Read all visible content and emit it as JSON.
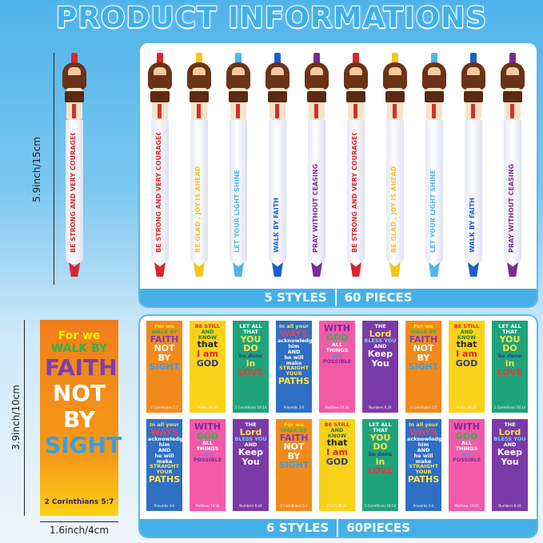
{
  "title": "PRODUCT INFORMATIONS",
  "pens_panel": {
    "styles": "5 STYLES",
    "pieces": "60 PIECES"
  },
  "bookmarks_panel": {
    "styles": "6 STYLES",
    "pieces": "60PIECES"
  },
  "dimensions": {
    "pen_length": "5.9inch/15cm",
    "bookmark_height": "3.9inch/10cm",
    "bookmark_width": "1.6inch/4cm"
  },
  "pen_styles": [
    {
      "text": "BE STRONG AND VERY COURAGEOUS",
      "color": "#d8262c"
    },
    {
      "text": "BE GLAD , JOY IS AHEAD",
      "color": "#f5c518"
    },
    {
      "text": "LET YOUR LIGHT SHINE",
      "color": "#4fb6ec"
    },
    {
      "text": "WALK BY FAITH",
      "color": "#1f5fc8"
    },
    {
      "text": "PRAY WITHOUT CEASING",
      "color": "#7a2a9a"
    }
  ],
  "pen_order": [
    0,
    1,
    2,
    3,
    4,
    0,
    1,
    2,
    3,
    4
  ],
  "bookmark_styles": [
    {
      "bg": "#f38a1c",
      "lines": [
        {
          "t": "For we",
          "c": "#fff200"
        },
        {
          "t": "WALK BY",
          "c": "#2eb34a"
        },
        {
          "t": "FAITH",
          "c": "#7b3fb0",
          "big": true
        },
        {
          "t": "NOT",
          "c": "#fff",
          "big": true
        },
        {
          "t": "BY",
          "c": "#fff",
          "big": true
        },
        {
          "t": "SIGHT",
          "c": "#3a9ee0",
          "big": true
        }
      ],
      "ref": "2 Corinthians 5:7"
    },
    {
      "bg": "#f9d21a",
      "lines": [
        {
          "t": "BE STILL",
          "c": "#e2262c"
        },
        {
          "t": "AND KNOW",
          "c": "#2a7a3a"
        },
        {
          "t": "that",
          "c": "#222",
          "big": true
        },
        {
          "t": "I am",
          "c": "#d8262c",
          "big": true
        },
        {
          "t": "GOD",
          "c": "#2a3a8a",
          "big": true
        }
      ],
      "ref": "Psalm 46:10"
    },
    {
      "bg": "#1fa37a",
      "lines": [
        {
          "t": "LET ALL",
          "c": "#fff"
        },
        {
          "t": "THAT",
          "c": "#fff"
        },
        {
          "t": "YOU DO",
          "c": "#ffe14a",
          "big": true
        },
        {
          "t": "be done",
          "c": "#2a3a8a"
        },
        {
          "t": "in",
          "c": "#ffe14a",
          "big": true
        },
        {
          "t": "LOVE",
          "c": "#e23a3a",
          "big": true
        }
      ],
      "ref": "1 Corinthians 16:14"
    },
    {
      "bg": "#2f6fc4",
      "lines": [
        {
          "t": "In all your",
          "c": "#ffe14a"
        },
        {
          "t": "WAYS",
          "c": "#e8405a",
          "big": true
        },
        {
          "t": "acknowledge him",
          "c": "#fff"
        },
        {
          "t": "AND",
          "c": "#fff"
        },
        {
          "t": "he will make",
          "c": "#fff"
        },
        {
          "t": "STRAIGHT YOUR",
          "c": "#ffe14a"
        },
        {
          "t": "PATHS",
          "c": "#ffe14a",
          "big": true
        }
      ],
      "ref": "Proverbs 3:6"
    },
    {
      "bg": "#f25aa8",
      "lines": [
        {
          "t": "WITH",
          "c": "#7a2a9a",
          "big": true
        },
        {
          "t": "GOD",
          "c": "#2eb34a",
          "big": true
        },
        {
          "t": "ALL",
          "c": "#fff"
        },
        {
          "t": "THINGS",
          "c": "#fff"
        },
        {
          "t": "are",
          "c": "#3a9ee0"
        },
        {
          "t": "POSSIBLE",
          "c": "#7a2a9a"
        }
      ],
      "ref": "Matthew 19:26"
    },
    {
      "bg": "#7a3aa8",
      "lines": [
        {
          "t": "THE",
          "c": "#fff"
        },
        {
          "t": "Lord",
          "c": "#ffe14a",
          "big": true
        },
        {
          "t": "BLESS YOU",
          "c": "#6fd0ff"
        },
        {
          "t": "AND",
          "c": "#fff"
        },
        {
          "t": "Keep",
          "c": "#fff",
          "big": true
        },
        {
          "t": "You",
          "c": "#fff",
          "big": true
        }
      ],
      "ref": "Numbers 6:24"
    }
  ],
  "bookmark_order": [
    0,
    1,
    2,
    3,
    4,
    5,
    0,
    1,
    2,
    3,
    4,
    5,
    0,
    1,
    2,
    3,
    4,
    5
  ]
}
